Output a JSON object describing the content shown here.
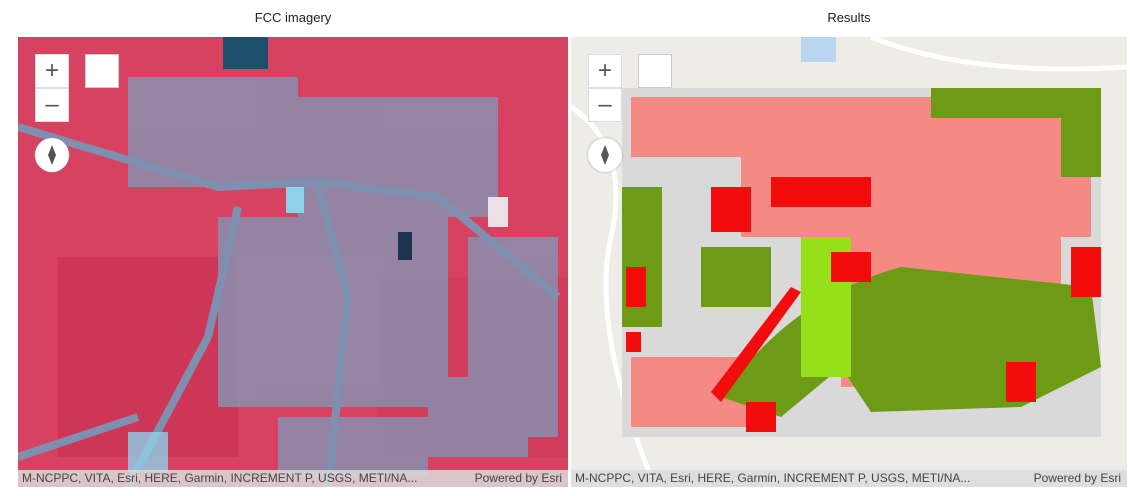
{
  "panels": [
    {
      "title": "FCC imagery",
      "attribution": "M-NCPPC, VITA, Esri, HERE, Garmin, INCREMENT P, USGS, METI/NA...",
      "powered": "Powered by Esri"
    },
    {
      "title": "Results",
      "attribution": "M-NCPPC, VITA, Esri, HERE, Garmin, INCREMENT P, USGS, METI/NA...",
      "powered": "Powered by Esri"
    }
  ]
}
